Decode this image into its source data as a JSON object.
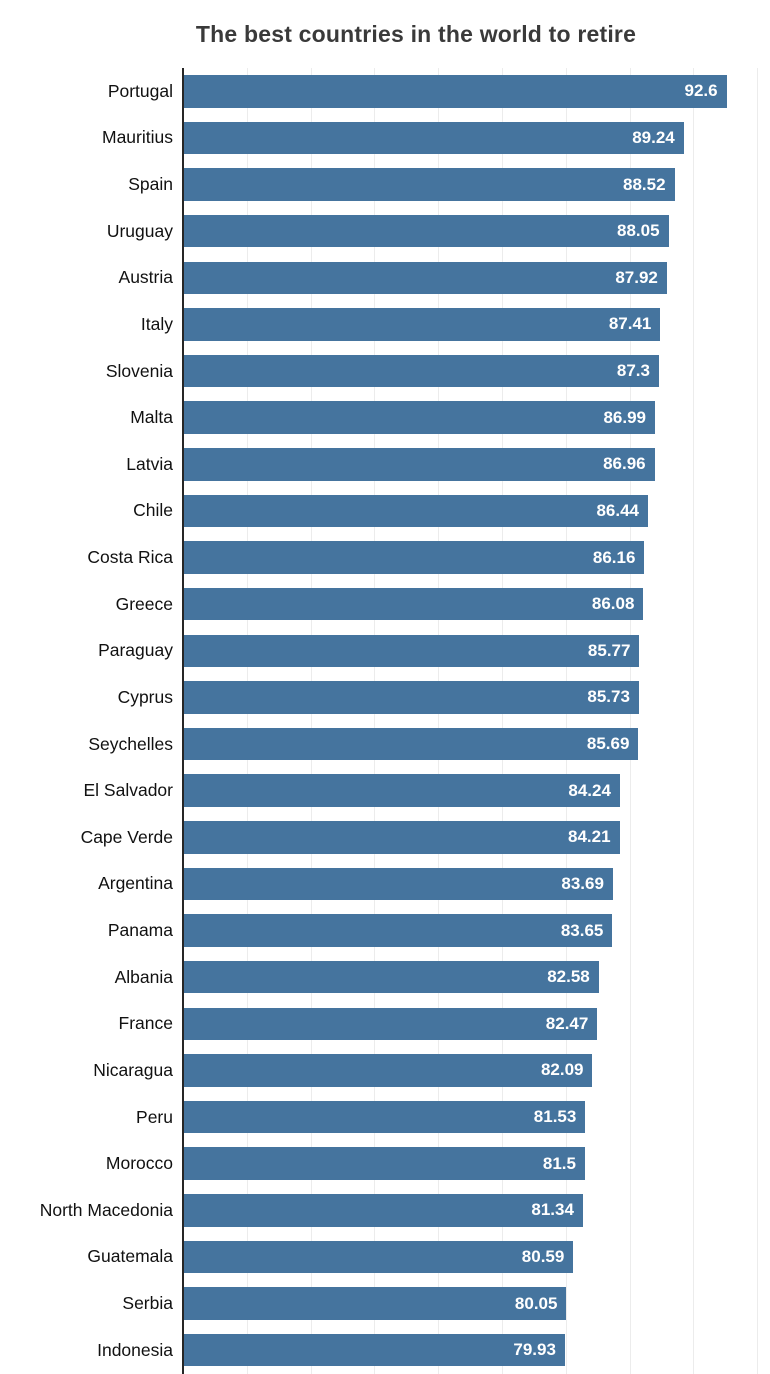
{
  "chart_data": {
    "type": "bar",
    "orientation": "horizontal",
    "title": "The best countries in the world to retire",
    "categories": [
      "Portugal",
      "Mauritius",
      "Spain",
      "Uruguay",
      "Austria",
      "Italy",
      "Slovenia",
      "Malta",
      "Latvia",
      "Chile",
      "Costa Rica",
      "Greece",
      "Paraguay",
      "Cyprus",
      "Seychelles",
      "El Salvador",
      "Cape Verde",
      "Argentina",
      "Panama",
      "Albania",
      "France",
      "Nicaragua",
      "Peru",
      "Morocco",
      "North Macedonia",
      "Guatemala",
      "Serbia",
      "Indonesia"
    ],
    "values": [
      92.6,
      89.24,
      88.52,
      88.05,
      87.92,
      87.41,
      87.3,
      86.99,
      86.96,
      86.44,
      86.16,
      86.08,
      85.77,
      85.73,
      85.69,
      84.24,
      84.21,
      83.69,
      83.65,
      82.58,
      82.47,
      82.09,
      81.53,
      81.5,
      81.34,
      80.59,
      80.05,
      79.93
    ],
    "xlim": [
      50,
      96
    ],
    "grid_values": [
      55,
      60,
      65,
      70,
      75,
      80,
      85,
      90,
      95
    ],
    "grid": true,
    "legend": false,
    "xlabel": "",
    "ylabel": "",
    "value_labels_inside_bars": true,
    "colors": {
      "bar": "#45749E",
      "value_label": "#ffffff",
      "category_label": "#111111",
      "title": "#3a3a3a",
      "axis": "#262626",
      "grid": "#ececec",
      "background": "#ffffff"
    }
  }
}
